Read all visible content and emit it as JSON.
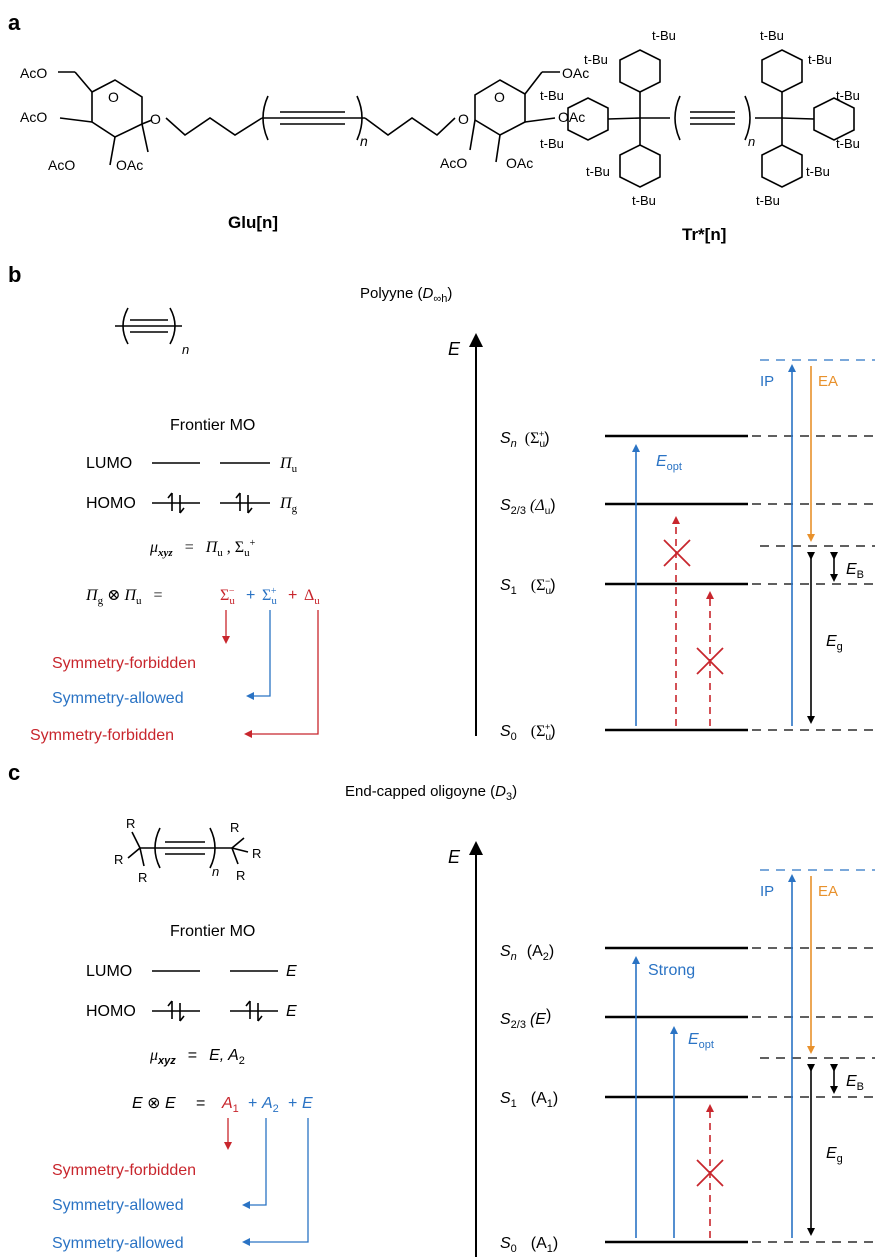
{
  "panel_a": {
    "letter": "a",
    "glu": {
      "label": "Glu[n]",
      "groups": {
        "aco_top_left": "AcO",
        "aco_mid_left": "AcO",
        "aco_bot_left": "AcO",
        "oac_bot_left": "OAc",
        "ring_o_left": "O",
        "link_o_left": "O",
        "link_o_right": "O",
        "ring_o_right": "O",
        "oac_top_right": "OAc",
        "oac_mid_right": "OAc",
        "aco_bot_right": "AcO",
        "oac_bot_right": "OAc",
        "n": "n"
      }
    },
    "tr": {
      "label": "Tr*[n]",
      "tbu": "t-Bu",
      "n": "n"
    }
  },
  "panel_b": {
    "letter": "b",
    "title_prefix": "Polyyne (",
    "title_sym": "D",
    "title_sub": "∞h",
    "title_suffix": ")",
    "repeat_n": "n",
    "frontier_title": "Frontier MO",
    "lumo": "LUMO",
    "homo": "HOMO",
    "lumo_sym": "Π",
    "lumo_sub": "u",
    "homo_sym": "Π",
    "homo_sub": "g",
    "mu_sym": "μ",
    "mu_sub": "xyz",
    "mu_eq": "=",
    "mu_val1": "Π",
    "mu_val1_sub": "u",
    "mu_val2": "Σ",
    "mu_val2_sub": "u",
    "mu_val2_sup": "+",
    "prod_a": "Π",
    "prod_a_sub": "g",
    "prod_op": "⊗",
    "prod_b": "Π",
    "prod_b_sub": "u",
    "prod_eq": "=",
    "term1": "Σ",
    "term1_sub": "u",
    "term1_sup": "−",
    "term2": "Σ",
    "term2_sub": "u",
    "term2_sup": "+",
    "term3": "Δ",
    "term3_sub": "u",
    "plus": "+",
    "note1": "Symmetry-forbidden",
    "note2": "Symmetry-allowed",
    "note3": "Symmetry-forbidden",
    "axis_label": "E",
    "states": [
      {
        "s": "S",
        "sub": "n",
        "sym": "(Σ",
        "ssub": "u",
        "ssup": "+",
        "close": ")"
      },
      {
        "s": "S",
        "sub": "2/3",
        "sym": "(Δ",
        "ssub": "u",
        "ssup": "",
        "close": ")"
      },
      {
        "s": "S",
        "sub": "1",
        "sym": "(Σ",
        "ssub": "u",
        "ssup": "−",
        "close": ")"
      },
      {
        "s": "S",
        "sub": "0",
        "sym": "(Σ",
        "ssub": "u",
        "ssup": "+",
        "close": ")"
      }
    ],
    "eopt": "E",
    "eopt_sub": "opt",
    "ip": "IP",
    "ea": "EA",
    "eb": "E",
    "eb_sub": "B",
    "eg": "E",
    "eg_sub": "g"
  },
  "panel_c": {
    "letter": "c",
    "title_prefix": "End-capped oligoyne (",
    "title_sym": "D",
    "title_sub": "3",
    "title_suffix": ")",
    "r": "R",
    "repeat_n": "n",
    "frontier_title": "Frontier MO",
    "lumo": "LUMO",
    "homo": "HOMO",
    "lumo_sym": "E",
    "homo_sym": "E",
    "mu_sym": "μ",
    "mu_sub": "xyz",
    "mu_eq": "=",
    "mu_val": "E, A",
    "mu_val_sub": "2",
    "prod": "E ⊗ E",
    "prod_eq": "=",
    "term1": "A",
    "term1_sub": "1",
    "term2": "A",
    "term2_sub": "2",
    "term3": "E",
    "plus": "+",
    "note1": "Symmetry-forbidden",
    "note2": "Symmetry-allowed",
    "note3": "Symmetry-allowed",
    "axis_label": "E",
    "states": [
      {
        "s": "S",
        "sub": "n",
        "sym": "(A",
        "ssub": "2",
        "close": ")"
      },
      {
        "s": "S",
        "sub": "2/3",
        "sym": "(E",
        "ssub": "",
        "close": ")"
      },
      {
        "s": "S",
        "sub": "1",
        "sym": "(A",
        "ssub": "1",
        "close": ")"
      },
      {
        "s": "S",
        "sub": "0",
        "sym": "(A",
        "ssub": "1",
        "close": ")"
      }
    ],
    "strong": "Strong",
    "eopt": "E",
    "eopt_sub": "opt",
    "ip": "IP",
    "ea": "EA",
    "eb": "E",
    "eb_sub": "B",
    "eg": "E",
    "eg_sub": "g"
  },
  "colors": {
    "blue": "#2a73c4",
    "red": "#c8262d",
    "orange": "#e8912c",
    "black": "#000000"
  }
}
